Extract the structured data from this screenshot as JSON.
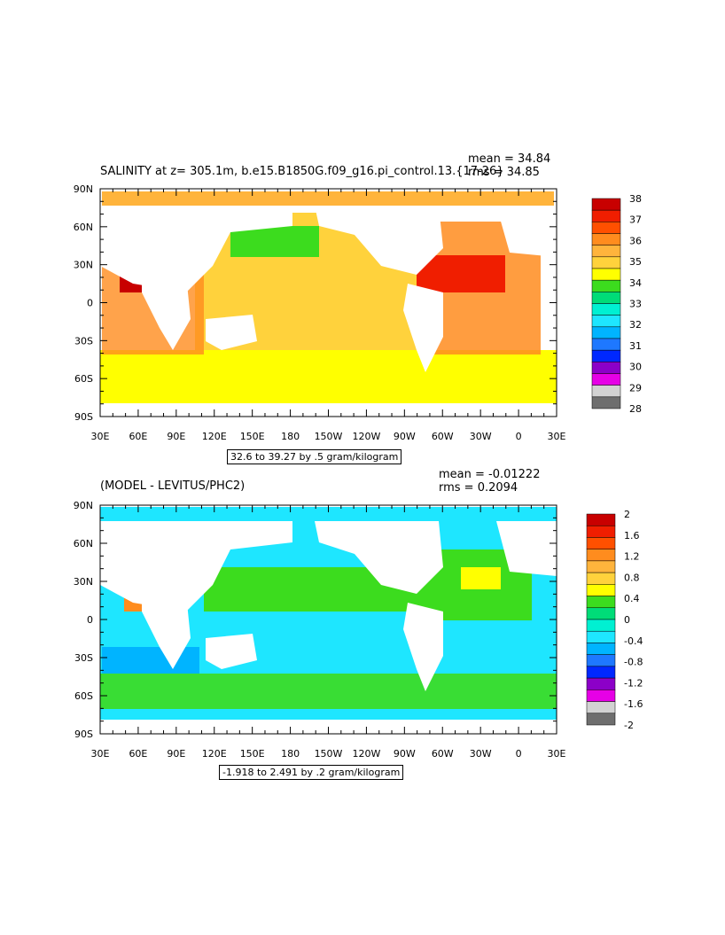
{
  "chart_data": [
    {
      "type": "heatmap",
      "title": "SALINITY at z= 305.1m, b.e15.B1850G.f09_g16.pi_control.13.{17-26}",
      "stats": {
        "mean": "mean = 34.84",
        "rms": "rms = 34.85"
      },
      "range_label": "32.6 to 39.27 by .5 gram/kilogram",
      "x_ticks": [
        "30E",
        "60E",
        "90E",
        "120E",
        "150E",
        "180",
        "150W",
        "120W",
        "90W",
        "60W",
        "30W",
        "0",
        "30E"
      ],
      "y_ticks": [
        "90N",
        "60N",
        "30N",
        "0",
        "30S",
        "60S",
        "90S"
      ],
      "xlim": [
        30,
        390
      ],
      "ylim": [
        -90,
        90
      ],
      "colorbar": {
        "labels": [
          "38",
          "37",
          "36",
          "35",
          "34",
          "33",
          "32",
          "31",
          "30",
          "29",
          "28"
        ],
        "colors": [
          "#c80000",
          "#f01e00",
          "#ff5000",
          "#ff8c1e",
          "#ffb43c",
          "#ffd23c",
          "#ffff00",
          "#3cdc1e",
          "#00dc78",
          "#00f0d2",
          "#1ee6ff",
          "#00b4ff",
          "#1e78ff",
          "#0028ff",
          "#8c00c8",
          "#e600e6",
          "#d2d2d2",
          "#6e6e6e"
        ]
      }
    },
    {
      "type": "heatmap",
      "title": "(MODEL - LEVITUS/PHC2)",
      "stats": {
        "mean": "mean = -0.01222",
        "rms": "rms = 0.2094"
      },
      "range_label": "-1.918 to 2.491 by .2 gram/kilogram",
      "x_ticks": [
        "30E",
        "60E",
        "90E",
        "120E",
        "150E",
        "180",
        "150W",
        "120W",
        "90W",
        "60W",
        "30W",
        "0",
        "30E"
      ],
      "y_ticks": [
        "90N",
        "60N",
        "30N",
        "0",
        "30S",
        "60S",
        "90S"
      ],
      "xlim": [
        30,
        390
      ],
      "ylim": [
        -90,
        90
      ],
      "colorbar": {
        "labels": [
          "2",
          "1.6",
          "1.2",
          "0.8",
          "0.4",
          "0",
          "-0.4",
          "-0.8",
          "-1.2",
          "-1.6",
          "-2"
        ],
        "colors": [
          "#c80000",
          "#f01e00",
          "#ff5000",
          "#ff8c1e",
          "#ffb43c",
          "#ffd23c",
          "#ffff00",
          "#3cdc1e",
          "#00dc78",
          "#00f0d2",
          "#1ee6ff",
          "#00b4ff",
          "#1e78ff",
          "#0028ff",
          "#8c00c8",
          "#e600e6",
          "#d2d2d2",
          "#6e6e6e"
        ]
      }
    }
  ]
}
